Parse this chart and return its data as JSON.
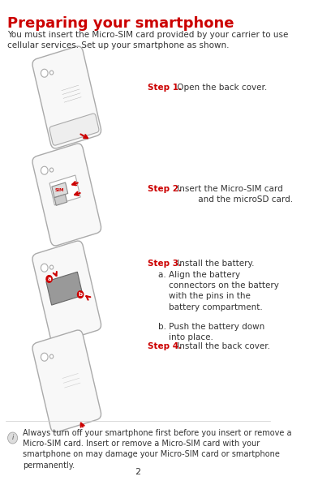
{
  "title": "Preparing your smartphone",
  "title_color": "#cc0000",
  "title_fontsize": 13,
  "body_color": "#333333",
  "body_fontsize": 7.5,
  "intro": "You must insert the Micro-SIM card provided by your carrier to use\ncellular services. Set up your smartphone as shown.",
  "step_color": "#cc0000",
  "step_label_fontsize": 7.5,
  "step1_label": "Step 1.",
  "step1_text": " Open the back cover.",
  "step2_label": "Step 2.",
  "step2_text": " Insert the Micro-SIM card\n         and the microSD card.",
  "step3_label": "Step 3.",
  "step3_text": " Install the battery.",
  "step3a_text": "a. Align the battery\n    connectors on the battery\n    with the pins in the\n    battery compartment.",
  "step3b_text": "b. Push the battery down\n    into place.",
  "step4_label": "Step 4.",
  "step4_text": " Install the back cover.",
  "note_text": "Always turn off your smartphone first before you insert or remove a\nMicro-SIM card. Insert or remove a Micro-SIM card with your\nsmartphone on may damage your Micro-SIM card or smartphone\npermanently.",
  "note_fontsize": 7.0,
  "page_num": "2",
  "bg_color": "#ffffff",
  "phone_outline": "#aaaaaa",
  "phone_fill": "#ffffff",
  "arrow_color": "#cc0000",
  "battery_fill": "#999999",
  "label_a_color": "#cc0000",
  "label_b_color": "#cc0000"
}
